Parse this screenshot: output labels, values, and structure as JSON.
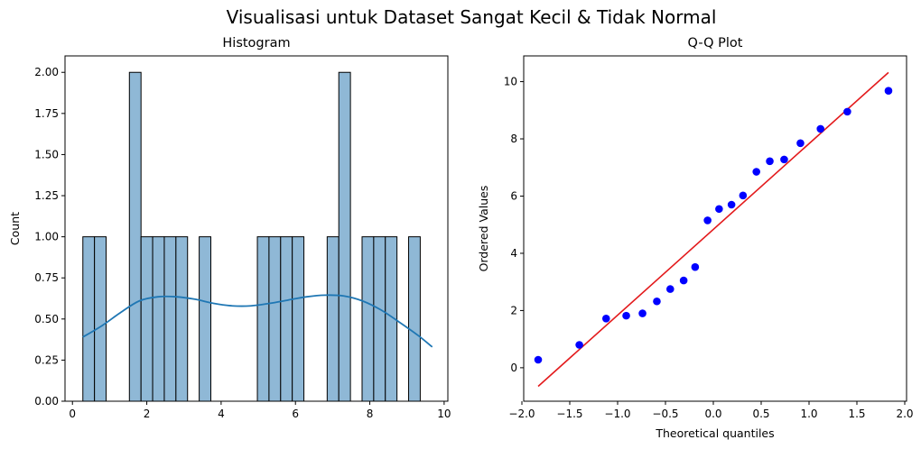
{
  "chart_data": {
    "suptitle": "Visualisasi untuk Dataset Sangat Kecil & Tidak Normal",
    "charts": [
      {
        "type": "bar",
        "title": "Histogram",
        "xlabel": "",
        "ylabel": "Count",
        "xlim": [
          -0.2,
          10.1
        ],
        "ylim": [
          0,
          2.1
        ],
        "xticks": [
          "0",
          "2",
          "4",
          "6",
          "8",
          "10"
        ],
        "xtick_values": [
          0,
          2,
          4,
          6,
          8,
          10
        ],
        "yticks": [
          "0.00",
          "0.25",
          "0.50",
          "0.75",
          "1.00",
          "1.25",
          "1.50",
          "1.75",
          "2.00"
        ],
        "ytick_values": [
          0,
          0.25,
          0.5,
          0.75,
          1.0,
          1.25,
          1.5,
          1.75,
          2.0
        ],
        "bin_start": 0.28,
        "bin_width": 0.313,
        "counts": [
          1,
          1,
          0,
          0,
          2,
          1,
          1,
          1,
          1,
          0,
          1,
          0,
          0,
          0,
          0,
          1,
          1,
          1,
          1,
          0,
          0,
          1,
          2,
          0,
          1,
          1,
          1,
          0,
          1,
          0
        ],
        "bar_color": "#8fb8d6",
        "kde": {
          "x": [
            0.28,
            0.8,
            1.3,
            1.8,
            2.3,
            2.8,
            3.3,
            3.8,
            4.3,
            4.8,
            5.3,
            5.8,
            6.3,
            6.8,
            7.3,
            7.8,
            8.3,
            8.8,
            9.3,
            9.68
          ],
          "y": [
            0.39,
            0.46,
            0.54,
            0.61,
            0.635,
            0.635,
            0.62,
            0.595,
            0.58,
            0.58,
            0.595,
            0.615,
            0.635,
            0.645,
            0.64,
            0.61,
            0.555,
            0.48,
            0.4,
            0.33
          ],
          "color": "#1f77b4"
        }
      },
      {
        "type": "scatter",
        "title": "Q-Q Plot",
        "xlabel": "Theoretical quantiles",
        "ylabel": "Ordered Values",
        "xlim": [
          -2.0,
          2.0
        ],
        "ylim": [
          -1.17,
          10.9
        ],
        "xticks": [
          "−2.0",
          "−1.5",
          "−1.0",
          "−0.5",
          "0.0",
          "0.5",
          "1.0",
          "1.5",
          "2.0"
        ],
        "xtick_values": [
          -2.0,
          -1.5,
          -1.0,
          -0.5,
          0.0,
          0.5,
          1.0,
          1.5,
          2.0
        ],
        "yticks": [
          "0",
          "2",
          "4",
          "6",
          "8",
          "10"
        ],
        "ytick_values": [
          0,
          2,
          4,
          6,
          8,
          10
        ],
        "points": {
          "x": [
            -1.83,
            -1.4,
            -1.12,
            -0.91,
            -0.74,
            -0.59,
            -0.45,
            -0.31,
            -0.19,
            -0.06,
            0.06,
            0.19,
            0.31,
            0.45,
            0.59,
            0.74,
            0.91,
            1.12,
            1.4,
            1.83
          ],
          "y": [
            0.28,
            0.8,
            1.72,
            1.82,
            1.9,
            2.32,
            2.75,
            3.05,
            3.52,
            5.15,
            5.55,
            5.7,
            6.02,
            6.85,
            7.22,
            7.28,
            7.85,
            8.35,
            8.95,
            9.68
          ],
          "color": "#0000ff"
        },
        "fit_line": {
          "x": [
            -1.83,
            1.83
          ],
          "y": [
            -0.65,
            10.32
          ],
          "color": "#e31a1c"
        }
      }
    ]
  }
}
